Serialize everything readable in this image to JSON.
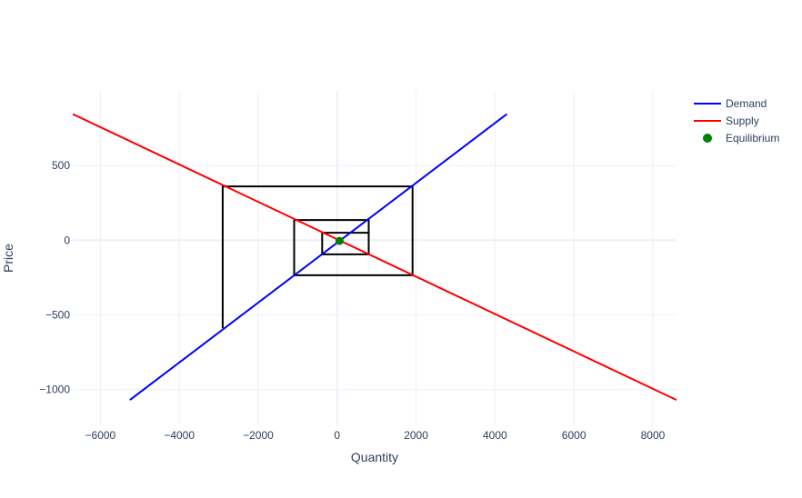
{
  "chart_data": {
    "type": "line",
    "xlabel": "Quantity",
    "ylabel": "Price",
    "xlim": [
      -6700,
      8600
    ],
    "ylim": [
      -1240,
      1000
    ],
    "x_ticks": [
      -6000,
      -4000,
      -2000,
      0,
      2000,
      4000,
      6000,
      8000
    ],
    "x_tick_labels": [
      "−6000",
      "−4000",
      "−2000",
      "0",
      "2000",
      "4000",
      "6000",
      "8000"
    ],
    "y_ticks": [
      -1000,
      -500,
      0,
      500
    ],
    "y_tick_labels": [
      "−1000",
      "−500",
      "0",
      "500"
    ],
    "grid": true,
    "legend_position": "top-right",
    "series": [
      {
        "name": "Demand",
        "kind": "line",
        "color": "#0000ff",
        "x": [
          -5250,
          4300
        ],
        "y": [
          -1070,
          845
        ]
      },
      {
        "name": "Supply",
        "kind": "line",
        "color": "#ff0000",
        "x": [
          -6700,
          8600
        ],
        "y": [
          845,
          -1070
        ]
      },
      {
        "name": "Equilibrium",
        "kind": "marker",
        "color": "#008000",
        "x": [
          60
        ],
        "y": [
          -5
        ]
      }
    ],
    "cobweb": {
      "color": "#000000",
      "x": [
        -2900,
        -2900,
        1910,
        1910,
        -1090,
        -1090,
        800,
        800,
        -380,
        -380,
        780
      ],
      "y": [
        -590,
        360,
        360,
        -235,
        -235,
        135,
        135,
        -95,
        -95,
        50,
        50
      ]
    }
  }
}
